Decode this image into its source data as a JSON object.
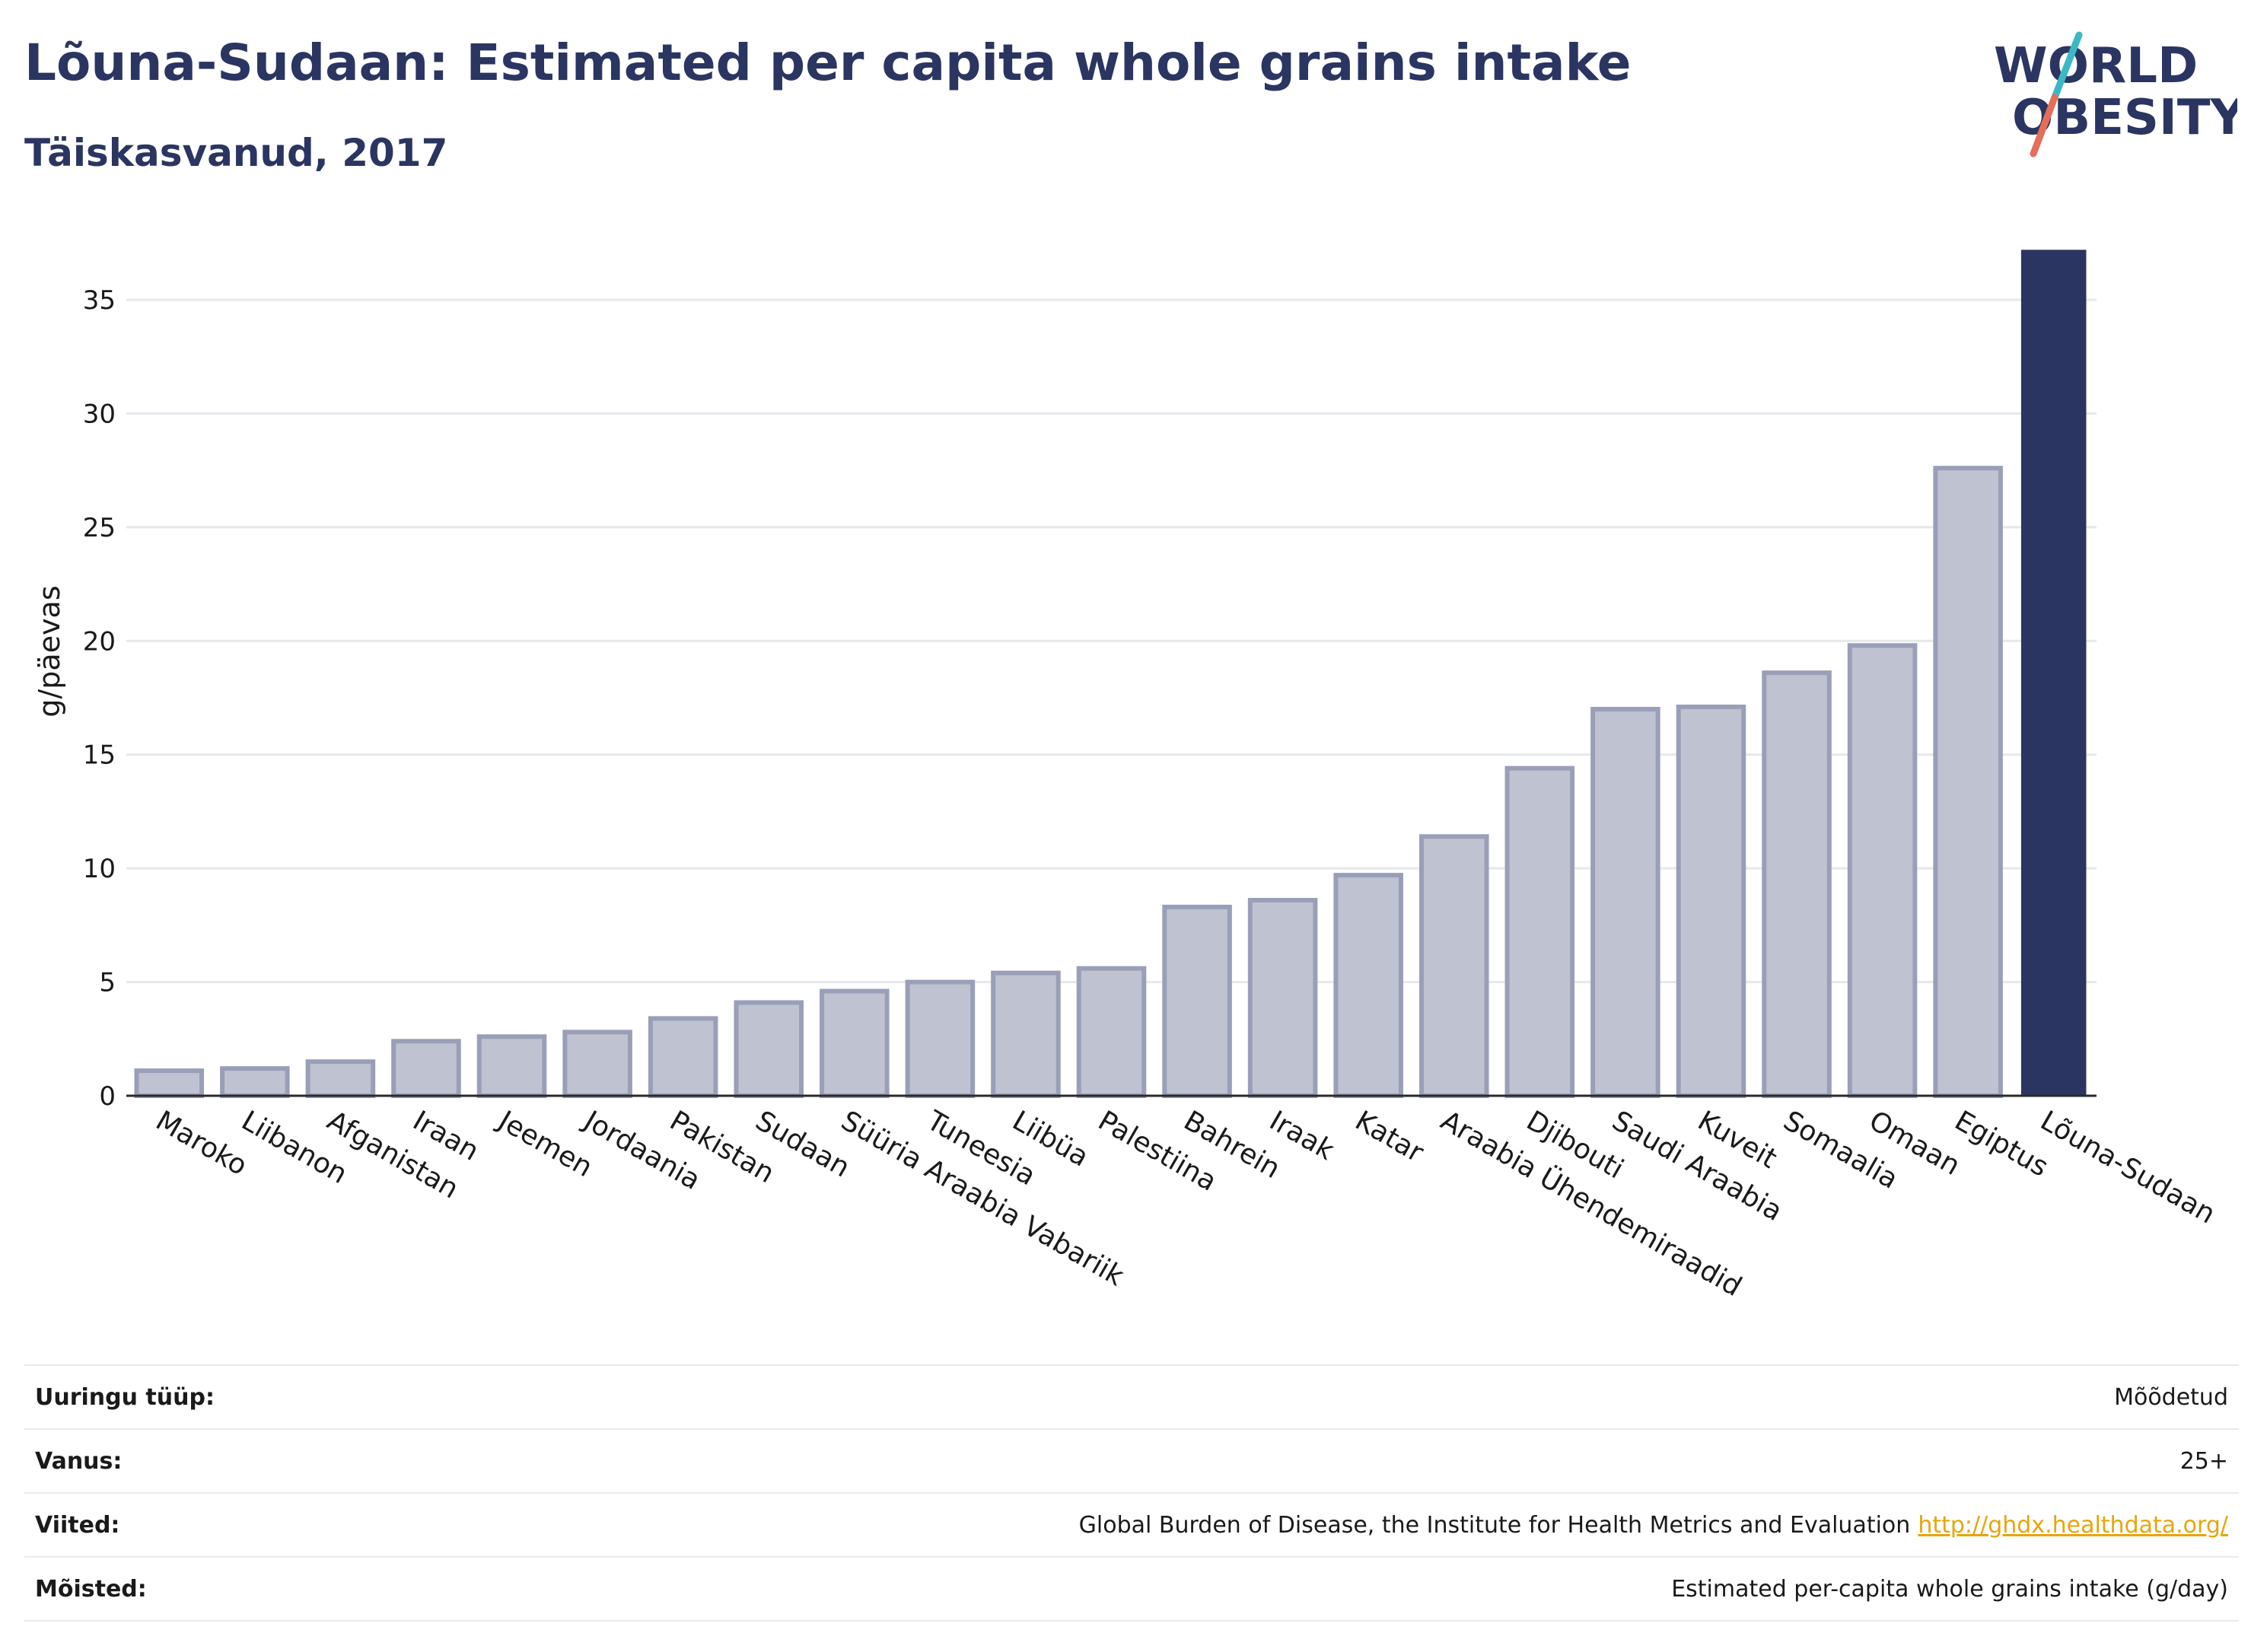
{
  "header": {
    "title": "Lõuna-Sudaan: Estimated per capita whole grains intake",
    "subtitle": "Täiskasvanud, 2017"
  },
  "logo": {
    "line1": "WORLD",
    "line2": "OBESITY"
  },
  "colors": {
    "highlight": "#2b3561",
    "bar_fill": "#bfc2d1",
    "bar_stroke": "#9a9fb8",
    "grid": "#e6e8ec",
    "title": "#2b3561",
    "link": "#e8a50a",
    "logo_teal": "#3bb8c4",
    "logo_coral": "#e56e5b"
  },
  "chart_data": {
    "type": "bar",
    "ylabel": "g/päevas",
    "ylim": [
      0,
      37.5
    ],
    "yticks": [
      0,
      5,
      10,
      15,
      20,
      25,
      30,
      35
    ],
    "grid": true,
    "highlight": "Lõuna-Sudaan",
    "categories": [
      "Maroko",
      "Liibanon",
      "Afganistan",
      "Iraan",
      "Jeemen",
      "Jordaania",
      "Pakistan",
      "Sudaan",
      "Süüria Araabia Vabariik",
      "Tuneesia",
      "Liibüa",
      "Palestiina",
      "Bahrein",
      "Iraak",
      "Katar",
      "Araabia Ühendemiraadid",
      "Djibouti",
      "Saudi Araabia",
      "Kuveit",
      "Somaalia",
      "Omaan",
      "Egiptus",
      "Lõuna-Sudaan"
    ],
    "values": [
      1.1,
      1.2,
      1.5,
      2.4,
      2.6,
      2.8,
      3.4,
      4.1,
      4.6,
      5.0,
      5.4,
      5.6,
      8.3,
      8.6,
      9.7,
      11.4,
      14.4,
      17.0,
      17.1,
      18.6,
      19.8,
      27.6,
      37.2
    ]
  },
  "info": [
    {
      "label": "Uuringu tüüp:",
      "value": "Mõõdetud",
      "link": ""
    },
    {
      "label": "Vanus:",
      "value": "25+",
      "link": ""
    },
    {
      "label": "Viited:",
      "value": "Global Burden of Disease, the Institute for Health Metrics and Evaluation",
      "link": "http://ghdx.healthdata.org/"
    },
    {
      "label": "Mõisted:",
      "value": "Estimated per-capita whole grains intake (g/day)",
      "link": ""
    }
  ]
}
